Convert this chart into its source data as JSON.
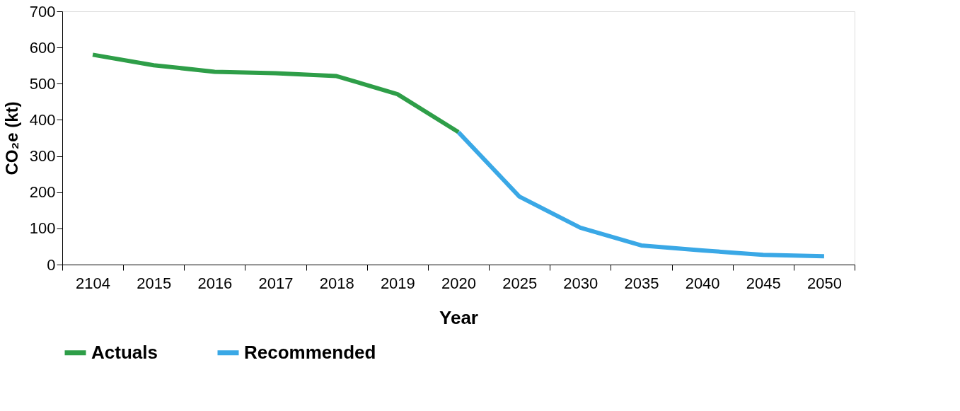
{
  "chart_data": {
    "type": "line",
    "xlabel": "Year",
    "ylabel": "CO₂e (kt)",
    "categories": [
      "2104",
      "2015",
      "2016",
      "2017",
      "2018",
      "2019",
      "2020",
      "2025",
      "2030",
      "2035",
      "2040",
      "2045",
      "2050"
    ],
    "series": [
      {
        "name": "Actuals",
        "color": "#2e9e48",
        "values": [
          580,
          551,
          533,
          529,
          521,
          471,
          366,
          null,
          null,
          null,
          null,
          null,
          null
        ]
      },
      {
        "name": "Recommended",
        "color": "#3aa8e6",
        "values": [
          null,
          null,
          null,
          null,
          null,
          null,
          366,
          188,
          102,
          53,
          39,
          27,
          23
        ]
      }
    ],
    "ylim": [
      0,
      700
    ],
    "yticks": [
      0,
      100,
      200,
      300,
      400,
      500,
      600,
      700
    ],
    "legend": "bottom"
  }
}
